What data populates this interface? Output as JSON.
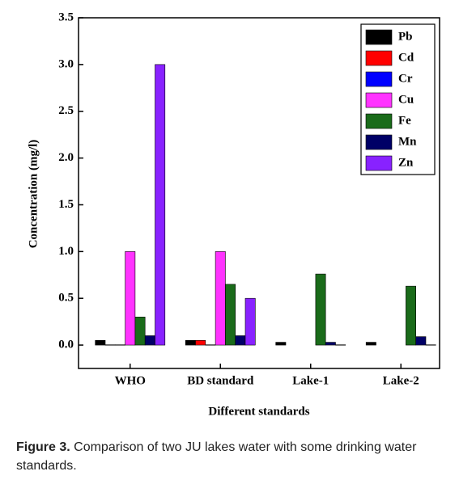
{
  "chart_data": {
    "type": "bar",
    "y_label": "Concentration (mg/l)",
    "x_label": "Different standards",
    "categories": [
      "WHO",
      "BD standard",
      "Lake-1",
      "Lake-2"
    ],
    "series": [
      {
        "name": "Pb",
        "color": "#000000",
        "values": [
          0.05,
          0.05,
          0.03,
          0.03
        ]
      },
      {
        "name": "Cd",
        "color": "#ff0000",
        "values": [
          0.003,
          0.05,
          null,
          null
        ]
      },
      {
        "name": "Cr",
        "color": "#0000ff",
        "values": [
          0.003,
          0.003,
          null,
          null
        ]
      },
      {
        "name": "Cu",
        "color": "#ff33ff",
        "values": [
          1.0,
          1.0,
          null,
          null
        ]
      },
      {
        "name": "Fe",
        "color": "#1a6b1a",
        "values": [
          0.3,
          0.65,
          0.76,
          0.63
        ]
      },
      {
        "name": "Mn",
        "color": "#000066",
        "values": [
          0.1,
          0.1,
          0.03,
          0.09
        ]
      },
      {
        "name": "Zn",
        "color": "#8822ff",
        "values": [
          3.0,
          0.5,
          0.003,
          0.003
        ]
      }
    ],
    "ylim": [
      -0.25,
      3.5
    ],
    "yticks": [
      {
        "value": 0,
        "label": "0.0"
      },
      0.5,
      {
        "value": 1,
        "label": "1.0"
      },
      1.5,
      {
        "value": 2,
        "label": "2.0"
      },
      2.5,
      {
        "value": 3,
        "label": "3.0"
      },
      3.5
    ],
    "legend": "upper right"
  },
  "caption_label": "Figure 3.",
  "caption": "Comparison of two JU lakes water with some drinking water standards."
}
